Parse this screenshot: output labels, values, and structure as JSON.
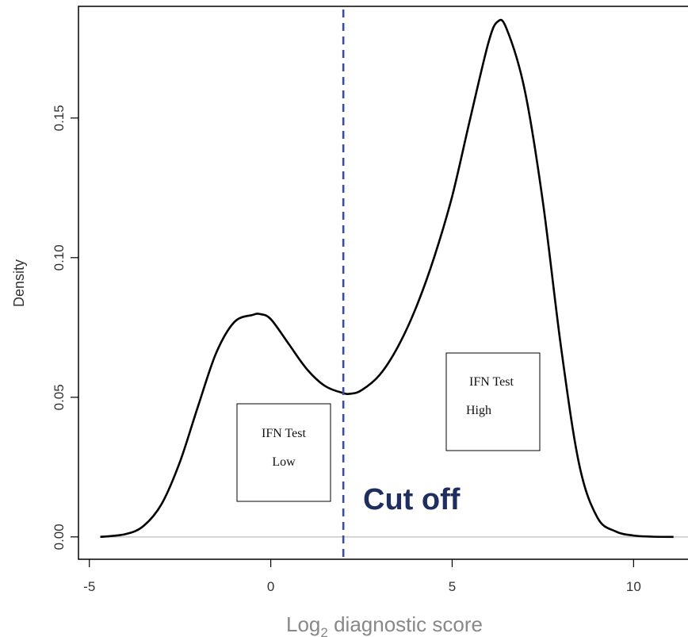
{
  "chart_data": {
    "type": "area",
    "xlabel_main": "Log",
    "xlabel_sub": "2",
    "xlabel_rest": " diagnostic score",
    "ylabel": "Density",
    "xlim": [
      -5.3,
      11.5
    ],
    "ylim": [
      -0.008,
      0.19
    ],
    "x_ticks": [
      -5,
      0,
      5,
      10
    ],
    "x_tick_labels": [
      "-5",
      "0",
      "5",
      "10"
    ],
    "y_ticks": [
      0.0,
      0.05,
      0.1,
      0.15
    ],
    "y_tick_labels": [
      "0.00",
      "0.05",
      "0.10",
      "0.15"
    ],
    "series": [
      {
        "x": [
          -4.7,
          -4.0,
          -3.5,
          -3.0,
          -2.5,
          -2.0,
          -1.5,
          -1.0,
          -0.5,
          -0.3,
          0.0,
          0.5,
          1.0,
          1.5,
          2.0,
          2.2,
          2.5,
          3.0,
          3.5,
          4.0,
          4.5,
          5.0,
          5.5,
          6.0,
          6.25,
          6.5,
          7.0,
          7.5,
          8.0,
          8.5,
          9.0,
          9.5,
          10.0,
          10.5,
          11.1
        ],
        "y": [
          0.0,
          0.001,
          0.004,
          0.012,
          0.027,
          0.047,
          0.066,
          0.077,
          0.0795,
          0.0798,
          0.078,
          0.069,
          0.06,
          0.054,
          0.0515,
          0.0513,
          0.0525,
          0.058,
          0.068,
          0.082,
          0.1,
          0.122,
          0.15,
          0.177,
          0.1845,
          0.182,
          0.16,
          0.12,
          0.068,
          0.026,
          0.007,
          0.002,
          0.0005,
          0.0001,
          0.0
        ]
      }
    ],
    "cutoff": {
      "x": 2.0,
      "label": "Cut off",
      "color": "#3b4f9c"
    },
    "annotations": [
      {
        "lines": [
          "IFN Test",
          "Low"
        ]
      },
      {
        "lines": [
          "IFN Test",
          "High"
        ]
      }
    ],
    "colors": {
      "curve": "#000000",
      "baseline": "#c8c8c8",
      "axis": "#000000",
      "cutoff_text": "#1e2f5f"
    }
  }
}
